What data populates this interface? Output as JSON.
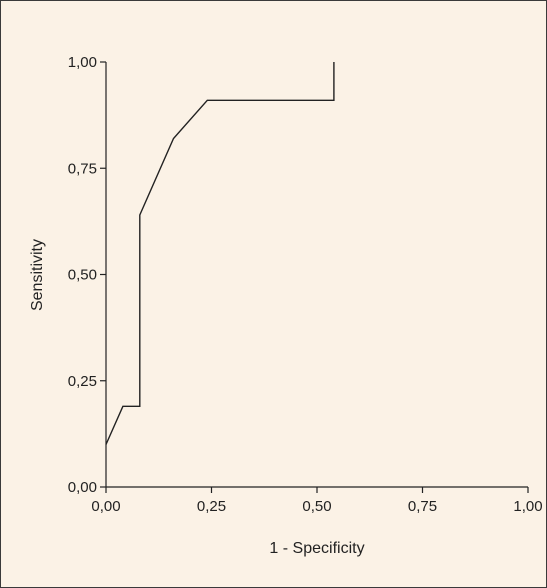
{
  "colors": {
    "background": "#fbf2e6",
    "frame": "#3a3a3a",
    "axis": "#222222",
    "curve": "#222222"
  },
  "chart_data": {
    "type": "line",
    "title": "",
    "xlabel": "1 - Specificity",
    "ylabel": "Sensitivity",
    "xlim": [
      0,
      1
    ],
    "ylim": [
      0,
      1
    ],
    "grid": false,
    "legend": "none",
    "x_ticks": [
      {
        "value": 0,
        "label": "0,00"
      },
      {
        "value": 0.25,
        "label": "0,25"
      },
      {
        "value": 0.5,
        "label": "0,50"
      },
      {
        "value": 0.75,
        "label": "0,75"
      },
      {
        "value": 1,
        "label": "1,00"
      }
    ],
    "y_ticks": [
      {
        "value": 0,
        "label": "0,00"
      },
      {
        "value": 0.25,
        "label": "0,25"
      },
      {
        "value": 0.5,
        "label": "0,50"
      },
      {
        "value": 0.75,
        "label": "0,75"
      },
      {
        "value": 1,
        "label": "1,00"
      }
    ],
    "series": [
      {
        "points": [
          [
            0.0,
            0.1
          ],
          [
            0.04,
            0.19
          ],
          [
            0.08,
            0.19
          ],
          [
            0.08,
            0.64
          ],
          [
            0.16,
            0.82
          ],
          [
            0.24,
            0.91
          ],
          [
            0.54,
            0.91
          ],
          [
            0.54,
            1.0
          ]
        ]
      }
    ]
  }
}
